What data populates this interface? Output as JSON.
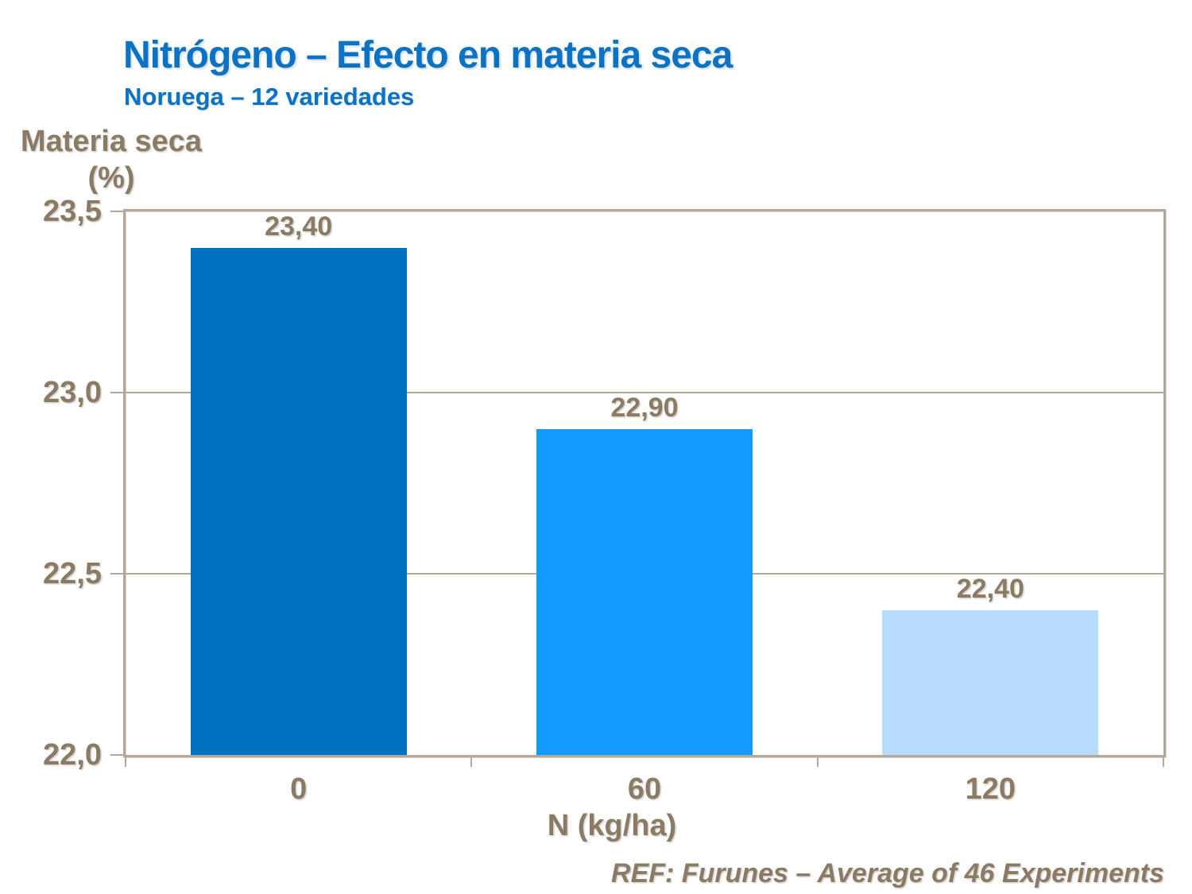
{
  "title": "Nitrógeno – Efecto en materia seca",
  "subtitle": "Noruega – 12 variedades",
  "y_axis": {
    "label_line1": "Materia seca",
    "label_line2": "(%)"
  },
  "x_axis": {
    "label": "N (kg/ha)"
  },
  "footer": "REF: Furunes – Average of 46 Experiments",
  "colors": {
    "title_blue": "#0C72C4",
    "text_brown": "#8B7B65",
    "axis_tan": "#B2A89B",
    "background": "#FFFFFF"
  },
  "chart_data": {
    "type": "bar",
    "title": "Nitrógeno – Efecto en materia seca",
    "subtitle": "Noruega – 12 variedades",
    "xlabel": "N (kg/ha)",
    "ylabel": "Materia seca (%)",
    "categories": [
      "0",
      "60",
      "120"
    ],
    "values": [
      23.4,
      22.9,
      22.4
    ],
    "value_labels": [
      "23,40",
      "22,90",
      "22,40"
    ],
    "bar_colors": [
      "#0070C0",
      "#129AFE",
      "#B8DDFC"
    ],
    "ylim": [
      22.0,
      23.5
    ],
    "y_ticks": [
      23.5,
      23.0,
      22.5,
      22.0
    ],
    "y_tick_labels": [
      "23,5",
      "23,0",
      "22,5",
      "22,0"
    ],
    "grid": "horizontal-inner",
    "legend": "none",
    "plot_border": true
  }
}
